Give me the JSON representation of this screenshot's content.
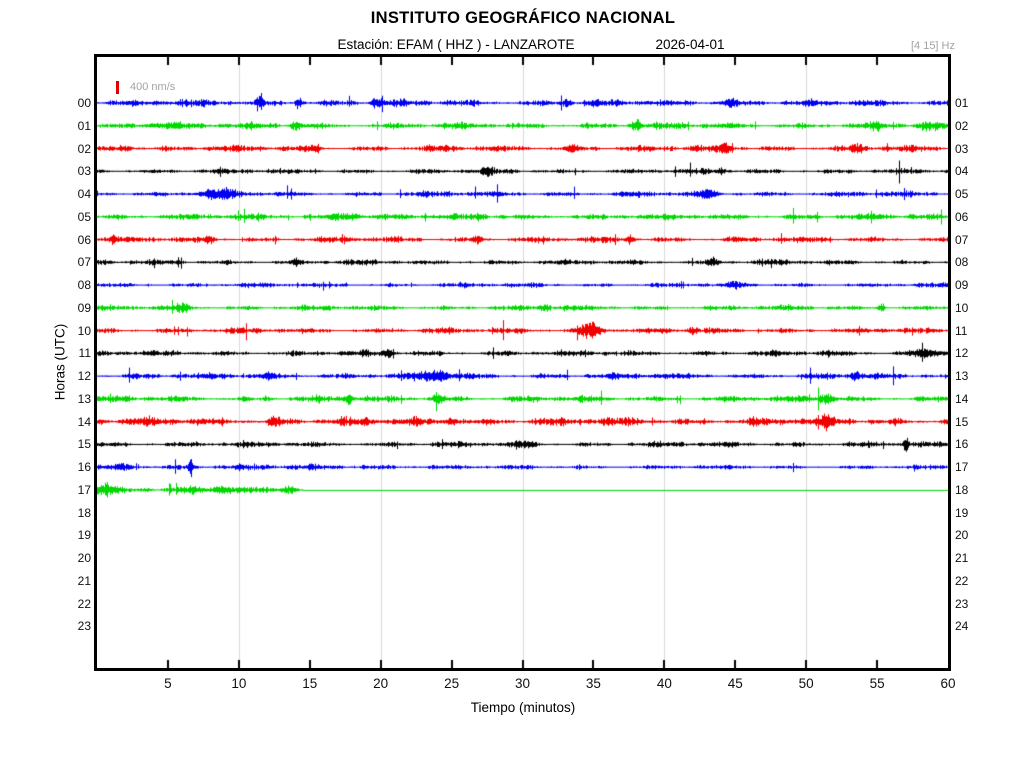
{
  "chart_data": {
    "type": "line",
    "subtype": "helicorder_seismogram",
    "title": "INSTITUTO GEOGRÁFICO NACIONAL",
    "station_line": "Estación:  EFAM ( HHZ ) - LANZAROTE",
    "station": "EFAM",
    "channel": "HHZ",
    "location": "LANZAROTE",
    "date": "2026-04-01",
    "filter_hz": "[4 15] Hz",
    "scale_label": "400 nm/s",
    "xlabel": "Tiempo (minutos)",
    "ylabel": "Horas (UTC)",
    "xlim": [
      0,
      60
    ],
    "x_ticks": [
      5,
      10,
      15,
      20,
      25,
      30,
      35,
      40,
      45,
      50,
      55,
      60
    ],
    "tick_minutes": [
      5,
      10,
      15,
      20,
      25,
      30,
      35,
      40,
      45,
      50,
      55
    ],
    "grid_minutes": [
      10,
      20,
      30,
      40,
      50
    ],
    "grid_on": true,
    "legend_position": "none",
    "trace_color_cycle": [
      "#0000f0",
      "#00d800",
      "#f00000",
      "#000000"
    ],
    "grid_color": "#d9d9d9",
    "frame_color": "#000000",
    "muted_text_color": "#a3a3a3",
    "scale_bar_color": "#e00000",
    "rows": [
      {
        "left_label": "00",
        "right_label": "01",
        "color": "#0000f0",
        "has_data": true,
        "data_start_minute": 0,
        "data_end_minute": 60,
        "base_amp": 2.6,
        "events": [
          [
            11.5,
            0.15,
            5
          ],
          [
            14.2,
            0.2,
            5
          ],
          [
            19.7,
            0.3,
            3
          ],
          [
            33,
            0.3,
            2.5
          ],
          [
            44.5,
            0.4,
            2.5
          ]
        ]
      },
      {
        "left_label": "01",
        "right_label": "02",
        "color": "#00d800",
        "has_data": true,
        "data_start_minute": 0,
        "data_end_minute": 60,
        "base_amp": 2.4,
        "events": [
          [
            4.5,
            1,
            2
          ],
          [
            14,
            0.3,
            3
          ],
          [
            38,
            0.25,
            4.5
          ],
          [
            55,
            0.3,
            2.5
          ],
          [
            58.8,
            0.5,
            2.5
          ]
        ]
      },
      {
        "left_label": "02",
        "right_label": "03",
        "color": "#f00000",
        "has_data": true,
        "data_start_minute": 0,
        "data_end_minute": 60,
        "base_amp": 2.4,
        "events": [
          [
            2,
            0.3,
            2.5
          ],
          [
            15.5,
            0.2,
            4
          ],
          [
            33.5,
            0.3,
            2.5
          ],
          [
            44.3,
            0.3,
            4
          ],
          [
            53.5,
            0.3,
            3
          ]
        ]
      },
      {
        "left_label": "03",
        "right_label": "04",
        "color": "#000000",
        "has_data": true,
        "data_start_minute": 0,
        "data_end_minute": 60,
        "base_amp": 2.0,
        "events": [
          [
            27.5,
            0.3,
            3
          ],
          [
            44,
            0.2,
            2.5
          ]
        ]
      },
      {
        "left_label": "04",
        "right_label": "05",
        "color": "#0000f0",
        "has_data": true,
        "data_start_minute": 0,
        "data_end_minute": 60,
        "base_amp": 2.2,
        "events": [
          [
            8.5,
            0.8,
            3.5
          ],
          [
            43,
            0.3,
            3
          ]
        ]
      },
      {
        "left_label": "05",
        "right_label": "06",
        "color": "#00d800",
        "has_data": true,
        "data_start_minute": 0,
        "data_end_minute": 60,
        "base_amp": 2.4,
        "events": [
          [
            17.5,
            0.8,
            3
          ],
          [
            27,
            0.3,
            2.5
          ]
        ]
      },
      {
        "left_label": "06",
        "right_label": "07",
        "color": "#f00000",
        "has_data": true,
        "data_start_minute": 0,
        "data_end_minute": 60,
        "base_amp": 2.2,
        "events": [
          [
            1.2,
            0.2,
            3.5
          ],
          [
            8,
            0.25,
            3
          ],
          [
            26.8,
            0.25,
            3
          ],
          [
            37.5,
            0.2,
            3.5
          ]
        ]
      },
      {
        "left_label": "07",
        "right_label": "08",
        "color": "#000000",
        "has_data": true,
        "data_start_minute": 0,
        "data_end_minute": 60,
        "base_amp": 2.0,
        "events": [
          [
            14,
            0.2,
            2.5
          ],
          [
            43.5,
            0.3,
            3
          ]
        ]
      },
      {
        "left_label": "08",
        "right_label": "09",
        "color": "#0000f0",
        "has_data": true,
        "data_start_minute": 0,
        "data_end_minute": 60,
        "base_amp": 1.8,
        "events": [
          [
            45,
            0.4,
            2
          ]
        ]
      },
      {
        "left_label": "09",
        "right_label": "10",
        "color": "#00d800",
        "has_data": true,
        "data_start_minute": 0,
        "data_end_minute": 60,
        "base_amp": 2.0,
        "events": [
          [
            6,
            0.5,
            2.5
          ],
          [
            31.5,
            0.3,
            2
          ],
          [
            55.3,
            0.15,
            4.5
          ]
        ]
      },
      {
        "left_label": "10",
        "right_label": "11",
        "color": "#f00000",
        "has_data": true,
        "data_start_minute": 0,
        "data_end_minute": 60,
        "base_amp": 2.2,
        "events": [
          [
            34.7,
            0.6,
            6
          ],
          [
            42,
            0.2,
            2.5
          ]
        ]
      },
      {
        "left_label": "11",
        "right_label": "12",
        "color": "#000000",
        "has_data": true,
        "data_start_minute": 0,
        "data_end_minute": 60,
        "base_amp": 2.2,
        "events": [
          [
            20.5,
            0.3,
            2.5
          ],
          [
            58.5,
            0.8,
            3.5
          ]
        ]
      },
      {
        "left_label": "12",
        "right_label": "13",
        "color": "#0000f0",
        "has_data": true,
        "data_start_minute": 0,
        "data_end_minute": 60,
        "base_amp": 2.4,
        "events": [
          [
            12,
            0.3,
            2.5
          ],
          [
            23.8,
            0.8,
            4
          ],
          [
            53.5,
            0.3,
            3
          ]
        ]
      },
      {
        "left_label": "13",
        "right_label": "14",
        "color": "#00d800",
        "has_data": true,
        "data_start_minute": 0,
        "data_end_minute": 60,
        "base_amp": 2.4,
        "events": [
          [
            17.8,
            0.15,
            6
          ],
          [
            24,
            0.4,
            3
          ],
          [
            51.5,
            0.4,
            4.5
          ]
        ]
      },
      {
        "left_label": "14",
        "right_label": "15",
        "color": "#f00000",
        "has_data": true,
        "data_start_minute": 0,
        "data_end_minute": 60,
        "base_amp": 3.2,
        "events": [
          [
            12.5,
            0.3,
            3
          ],
          [
            25,
            0.4,
            3
          ],
          [
            51.5,
            0.3,
            4
          ]
        ]
      },
      {
        "left_label": "15",
        "right_label": "16",
        "color": "#000000",
        "has_data": true,
        "data_start_minute": 0,
        "data_end_minute": 60,
        "base_amp": 2.2,
        "events": [
          [
            30,
            0.4,
            2
          ],
          [
            57,
            0.12,
            7
          ]
        ]
      },
      {
        "left_label": "16",
        "right_label": "17",
        "color": "#0000f0",
        "has_data": true,
        "data_start_minute": 0,
        "data_end_minute": 60,
        "base_amp": [
          [
            0,
            2.4
          ],
          [
            24,
            1.6
          ]
        ],
        "events": [
          [
            2,
            0.5,
            2
          ],
          [
            6.6,
            0.12,
            8
          ]
        ]
      },
      {
        "left_label": "17",
        "right_label": "18",
        "color": "#00d800",
        "has_data": true,
        "data_start_minute": 0,
        "data_end_minute": 14.5,
        "flat_line_to_minute": 60,
        "base_amp": 2.6,
        "events": [
          [
            0.5,
            0.4,
            6
          ],
          [
            9,
            0.5,
            2.5
          ],
          [
            13.5,
            0.4,
            3
          ]
        ]
      },
      {
        "left_label": "18",
        "right_label": "19",
        "color": "#000000",
        "has_data": false
      },
      {
        "left_label": "19",
        "right_label": "20",
        "color": "#0000f0",
        "has_data": false
      },
      {
        "left_label": "20",
        "right_label": "21",
        "color": "#00d800",
        "has_data": false
      },
      {
        "left_label": "21",
        "right_label": "22",
        "color": "#f00000",
        "has_data": false
      },
      {
        "left_label": "22",
        "right_label": "23",
        "color": "#000000",
        "has_data": false
      },
      {
        "left_label": "23",
        "right_label": "24",
        "color": "#0000f0",
        "has_data": false
      }
    ]
  }
}
